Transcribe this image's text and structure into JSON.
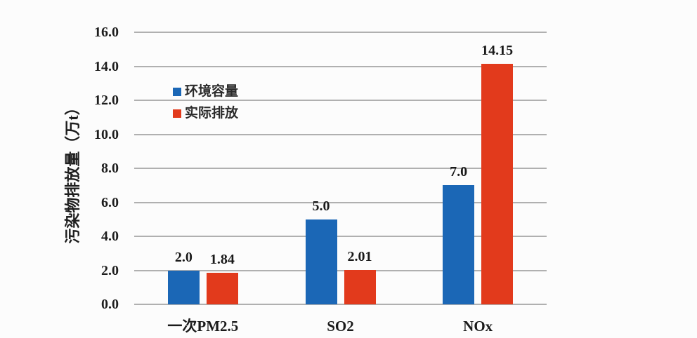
{
  "chart_data": {
    "type": "bar",
    "title": "",
    "xlabel": "",
    "ylabel": "污染物排放量（万t）",
    "categories": [
      "一次PM2.5",
      "SO2",
      "NOx"
    ],
    "series": [
      {
        "name": "环境容量",
        "color": "#1b67b6",
        "values": [
          2.0,
          5.0,
          7.0
        ],
        "value_labels": [
          "2.0",
          "5.0",
          "7.0"
        ]
      },
      {
        "name": "实际排放",
        "color": "#e23a1c",
        "values": [
          1.84,
          2.01,
          14.15
        ],
        "value_labels": [
          "1.84",
          "2.01",
          "14.15"
        ]
      }
    ],
    "ylim": [
      0,
      16
    ],
    "ytick_step": 2,
    "ytick_labels": [
      "0.0",
      "2.0",
      "4.0",
      "6.0",
      "8.0",
      "10.0",
      "12.0",
      "14.0",
      "16.0"
    ],
    "grid": true,
    "gridline_color": "#b0b0b0",
    "background_color": "#fcfcfc",
    "text_color": "#1e1e1e",
    "legend_position": "upper-left-inside",
    "bar_value_labels_shown": true
  }
}
